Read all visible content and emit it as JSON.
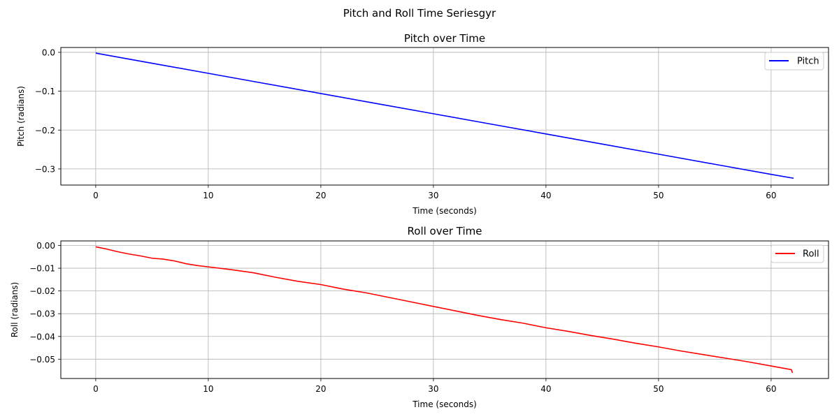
{
  "figure": {
    "suptitle": "Pitch and Roll Time Seriesgyr"
  },
  "chart_data": [
    {
      "type": "line",
      "title": "Pitch over Time",
      "xlabel": "Time (seconds)",
      "ylabel": "Pitch (radians)",
      "xlim": [
        -3.1,
        65.1
      ],
      "ylim": [
        -0.3415,
        0.0125
      ],
      "xticks": [
        0,
        10,
        20,
        30,
        40,
        50,
        60
      ],
      "xtick_labels": [
        "0",
        "10",
        "20",
        "30",
        "40",
        "50",
        "60"
      ],
      "yticks": [
        0.0,
        -0.1,
        -0.2,
        -0.3
      ],
      "ytick_labels": [
        "0.0",
        "−0.1",
        "−0.2",
        "−0.3"
      ],
      "grid": true,
      "legend_position": "top-right",
      "series": [
        {
          "name": "Pitch",
          "color": "#0000ff",
          "x": [
            0,
            5,
            10,
            15,
            20,
            25,
            30,
            35,
            40,
            45,
            50,
            55,
            60,
            62
          ],
          "y": [
            -0.002,
            -0.028,
            -0.054,
            -0.08,
            -0.106,
            -0.132,
            -0.158,
            -0.184,
            -0.21,
            -0.236,
            -0.262,
            -0.288,
            -0.314,
            -0.324
          ]
        }
      ]
    },
    {
      "type": "line",
      "title": "Roll over Time",
      "xlabel": "Time (seconds)",
      "ylabel": "Roll (radians)",
      "xlim": [
        -3.1,
        65.1
      ],
      "ylim": [
        -0.0585,
        0.002
      ],
      "xticks": [
        0,
        10,
        20,
        30,
        40,
        50,
        60
      ],
      "xtick_labels": [
        "0",
        "10",
        "20",
        "30",
        "40",
        "50",
        "60"
      ],
      "yticks": [
        0.0,
        -0.01,
        -0.02,
        -0.03,
        -0.04,
        -0.05
      ],
      "ytick_labels": [
        "0.00",
        "−0.01",
        "−0.02",
        "−0.03",
        "−0.04",
        "−0.05"
      ],
      "grid": true,
      "legend_position": "top-right",
      "series": [
        {
          "name": "Roll",
          "color": "#ff0000",
          "x": [
            0,
            1,
            2,
            3,
            4,
            5,
            6,
            7,
            8,
            9,
            10,
            12,
            14,
            16,
            18,
            20,
            22,
            24,
            26,
            28,
            30,
            32,
            34,
            36,
            38,
            40,
            42,
            44,
            46,
            48,
            50,
            52,
            54,
            56,
            58,
            60,
            61.8,
            61.9
          ],
          "y": [
            -0.0006,
            -0.0016,
            -0.0028,
            -0.0038,
            -0.0046,
            -0.0056,
            -0.006,
            -0.0068,
            -0.008,
            -0.0088,
            -0.0094,
            -0.0106,
            -0.012,
            -0.014,
            -0.0158,
            -0.0172,
            -0.0192,
            -0.0208,
            -0.0228,
            -0.0248,
            -0.0268,
            -0.0288,
            -0.0308,
            -0.0326,
            -0.0342,
            -0.0362,
            -0.0378,
            -0.0396,
            -0.0412,
            -0.043,
            -0.0446,
            -0.0464,
            -0.048,
            -0.0496,
            -0.0512,
            -0.053,
            -0.0546,
            -0.056
          ]
        }
      ]
    }
  ]
}
